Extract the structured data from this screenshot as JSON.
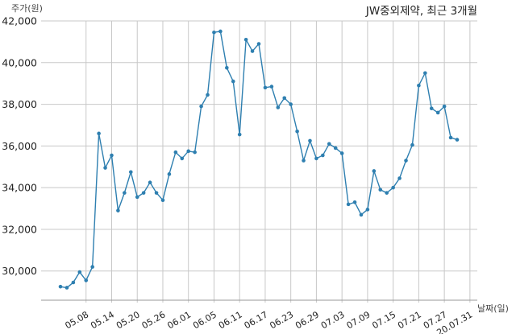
{
  "chart_data": {
    "type": "line",
    "title": "JW중외제약, 최근 3개월",
    "ylabel": "주가(원)",
    "xlabel": "날짜(일)",
    "ylim": [
      28600,
      42000
    ],
    "yticks": [
      30000,
      32000,
      34000,
      36000,
      38000,
      40000,
      42000
    ],
    "ytick_labels": [
      "30,000",
      "32,000",
      "34,000",
      "36,000",
      "38,000",
      "40,000",
      "42,000"
    ],
    "xtick_labels": [
      "05.08",
      "05.14",
      "05.20",
      "05.26",
      "06.01",
      "06.05",
      "06.11",
      "06.17",
      "06.23",
      "06.29",
      "07.03",
      "07.09",
      "07.15",
      "07.21",
      "07.27",
      "20.07.31"
    ],
    "xtick_indices": [
      4,
      8,
      12,
      16,
      20,
      24,
      28,
      32,
      36,
      40,
      44,
      48,
      52,
      56,
      60,
      64
    ],
    "grid": true,
    "line_color": "#2e7fb0",
    "series": [
      {
        "values": [
          29250,
          29200,
          29450,
          29950,
          29550,
          30200,
          36600,
          34950,
          35550,
          32900,
          33750,
          34750,
          33550,
          33750,
          34250,
          33750,
          33400,
          34650,
          35700,
          35400,
          35750,
          35700,
          37900,
          38450,
          41450,
          41500,
          39750,
          39100,
          36550,
          41100,
          40550,
          40900,
          38800,
          38850,
          37850,
          38300,
          38000,
          36700,
          35300,
          36250,
          35400,
          35550,
          36100,
          35900,
          35650,
          33200,
          33300,
          32700,
          32950,
          34800,
          33900,
          33750,
          34000,
          34450,
          35300,
          36050,
          38900,
          39500,
          37800,
          37600,
          37900,
          36400,
          36300
        ]
      }
    ]
  }
}
